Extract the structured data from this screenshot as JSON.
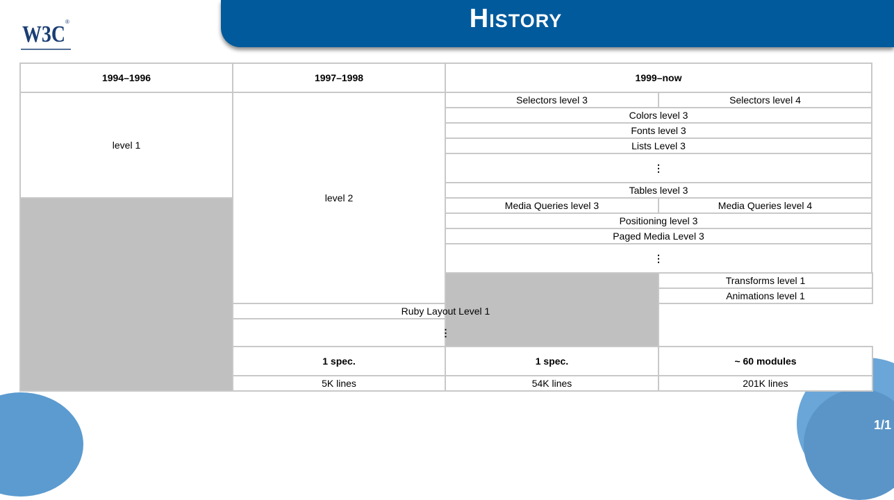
{
  "header": {
    "title": "History",
    "logo_text": "W3C",
    "logo_reg": "®"
  },
  "colors": {
    "title_bar": "#005a9c",
    "gray_cell": "#c0c0c0",
    "border": "#c8c8c8"
  },
  "table": {
    "eras": [
      "1994–1996",
      "1997–1998",
      "1999–now"
    ],
    "col1": {
      "spec": "level 1"
    },
    "col2": {
      "spec": "level 2"
    },
    "col3_rows": [
      [
        "Selectors level 3",
        "Selectors level 4"
      ],
      [
        "Colors level 3"
      ],
      [
        "Fonts level 3"
      ],
      [
        "Lists Level 3"
      ],
      [
        "⋮"
      ],
      [
        "Tables level 3"
      ],
      [
        "Media Queries level 3",
        "Media Queries level 4"
      ],
      [
        "Positioning level 3"
      ],
      [
        "Paged Media Level 3"
      ],
      [
        "⋮"
      ],
      [
        "Transforms level 1"
      ],
      [
        "Animations level 1"
      ],
      [
        "Ruby Layout Level 1"
      ],
      [
        "⋮"
      ]
    ],
    "counts": [
      "1 spec.",
      "1 spec.",
      "~ 60 modules"
    ],
    "lines": [
      "5K lines",
      "54K lines",
      "201K lines"
    ]
  },
  "footer": {
    "page": "1/1"
  }
}
